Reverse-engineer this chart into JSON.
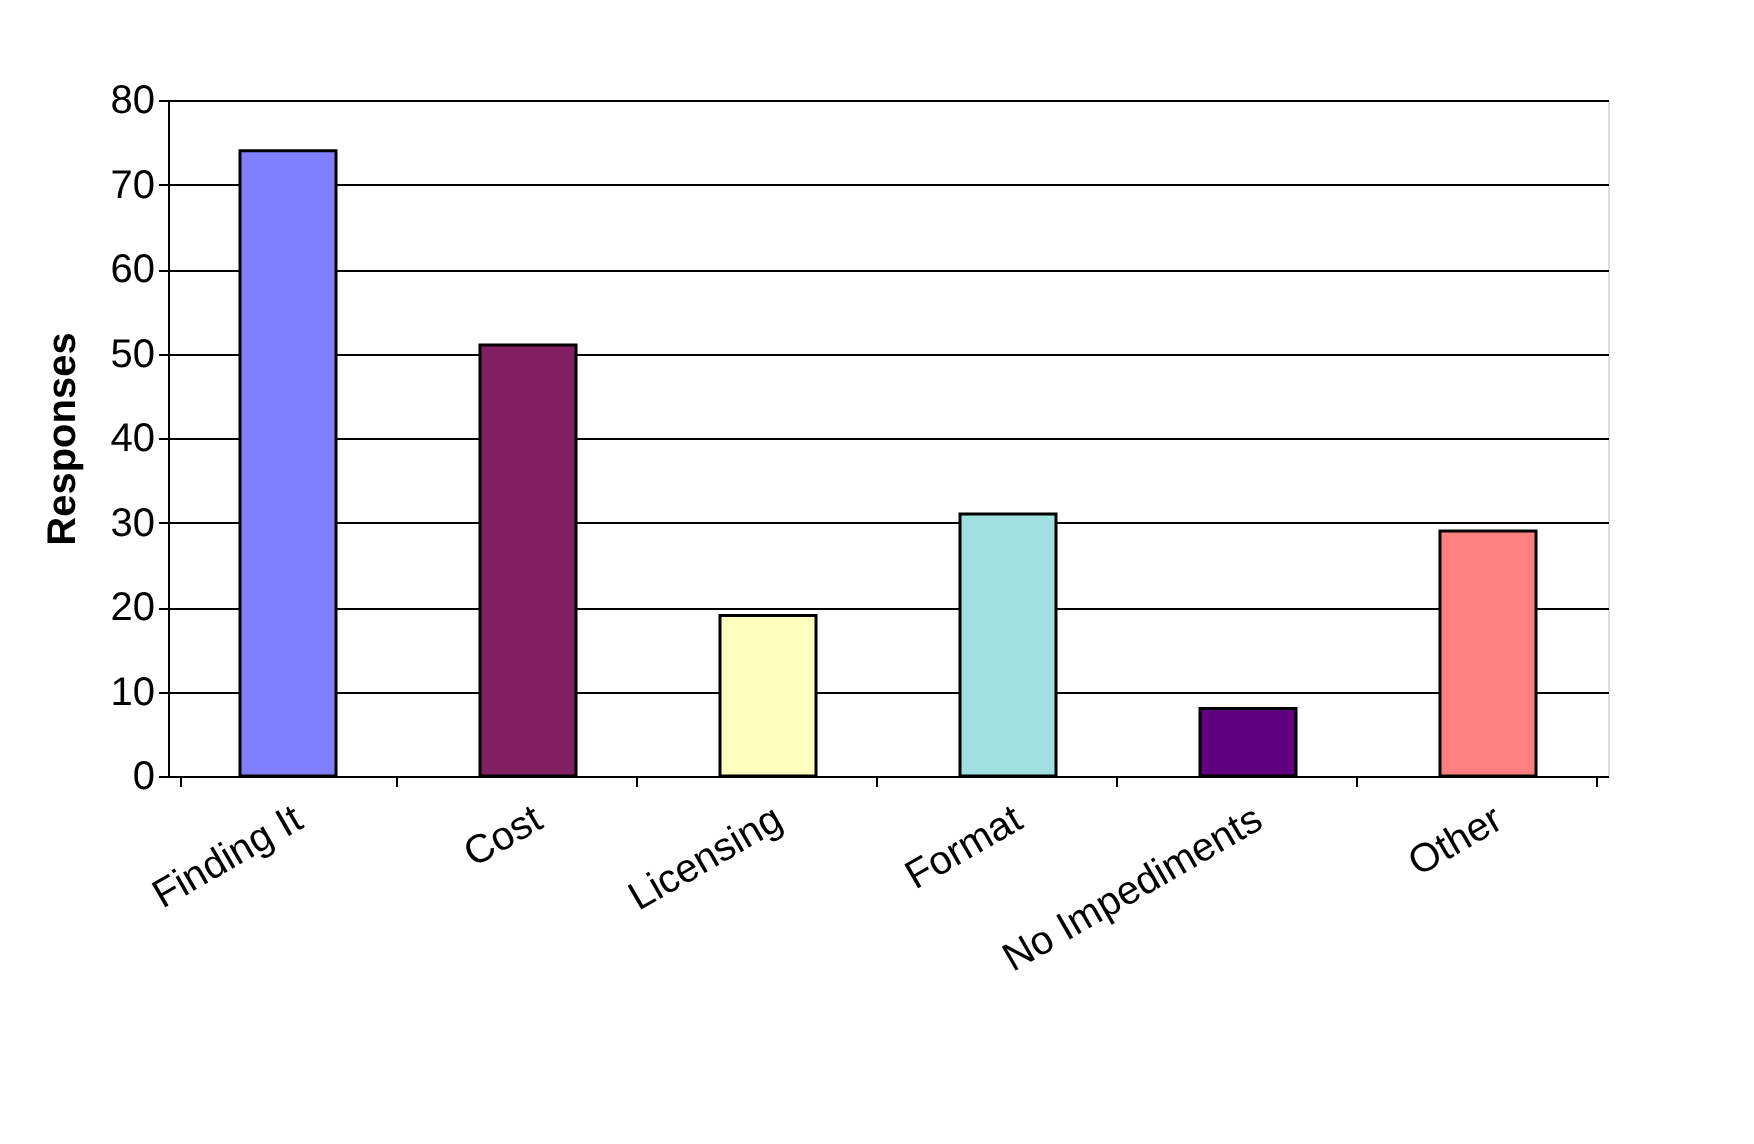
{
  "chart_data": {
    "type": "bar",
    "ylabel": "Responses",
    "categories": [
      "Finding It",
      "Cost",
      "Licensing",
      "Format",
      "No Impediments",
      "Other"
    ],
    "values": [
      74,
      51,
      19,
      31,
      8,
      29
    ],
    "colors": [
      "#8080ff",
      "#802060",
      "#ffffc0",
      "#a0e0e0",
      "#600080",
      "#ff8080"
    ],
    "ylim": [
      0,
      80
    ],
    "yticks": [
      0,
      10,
      20,
      30,
      40,
      50,
      60,
      70,
      80
    ],
    "grid": "y"
  }
}
